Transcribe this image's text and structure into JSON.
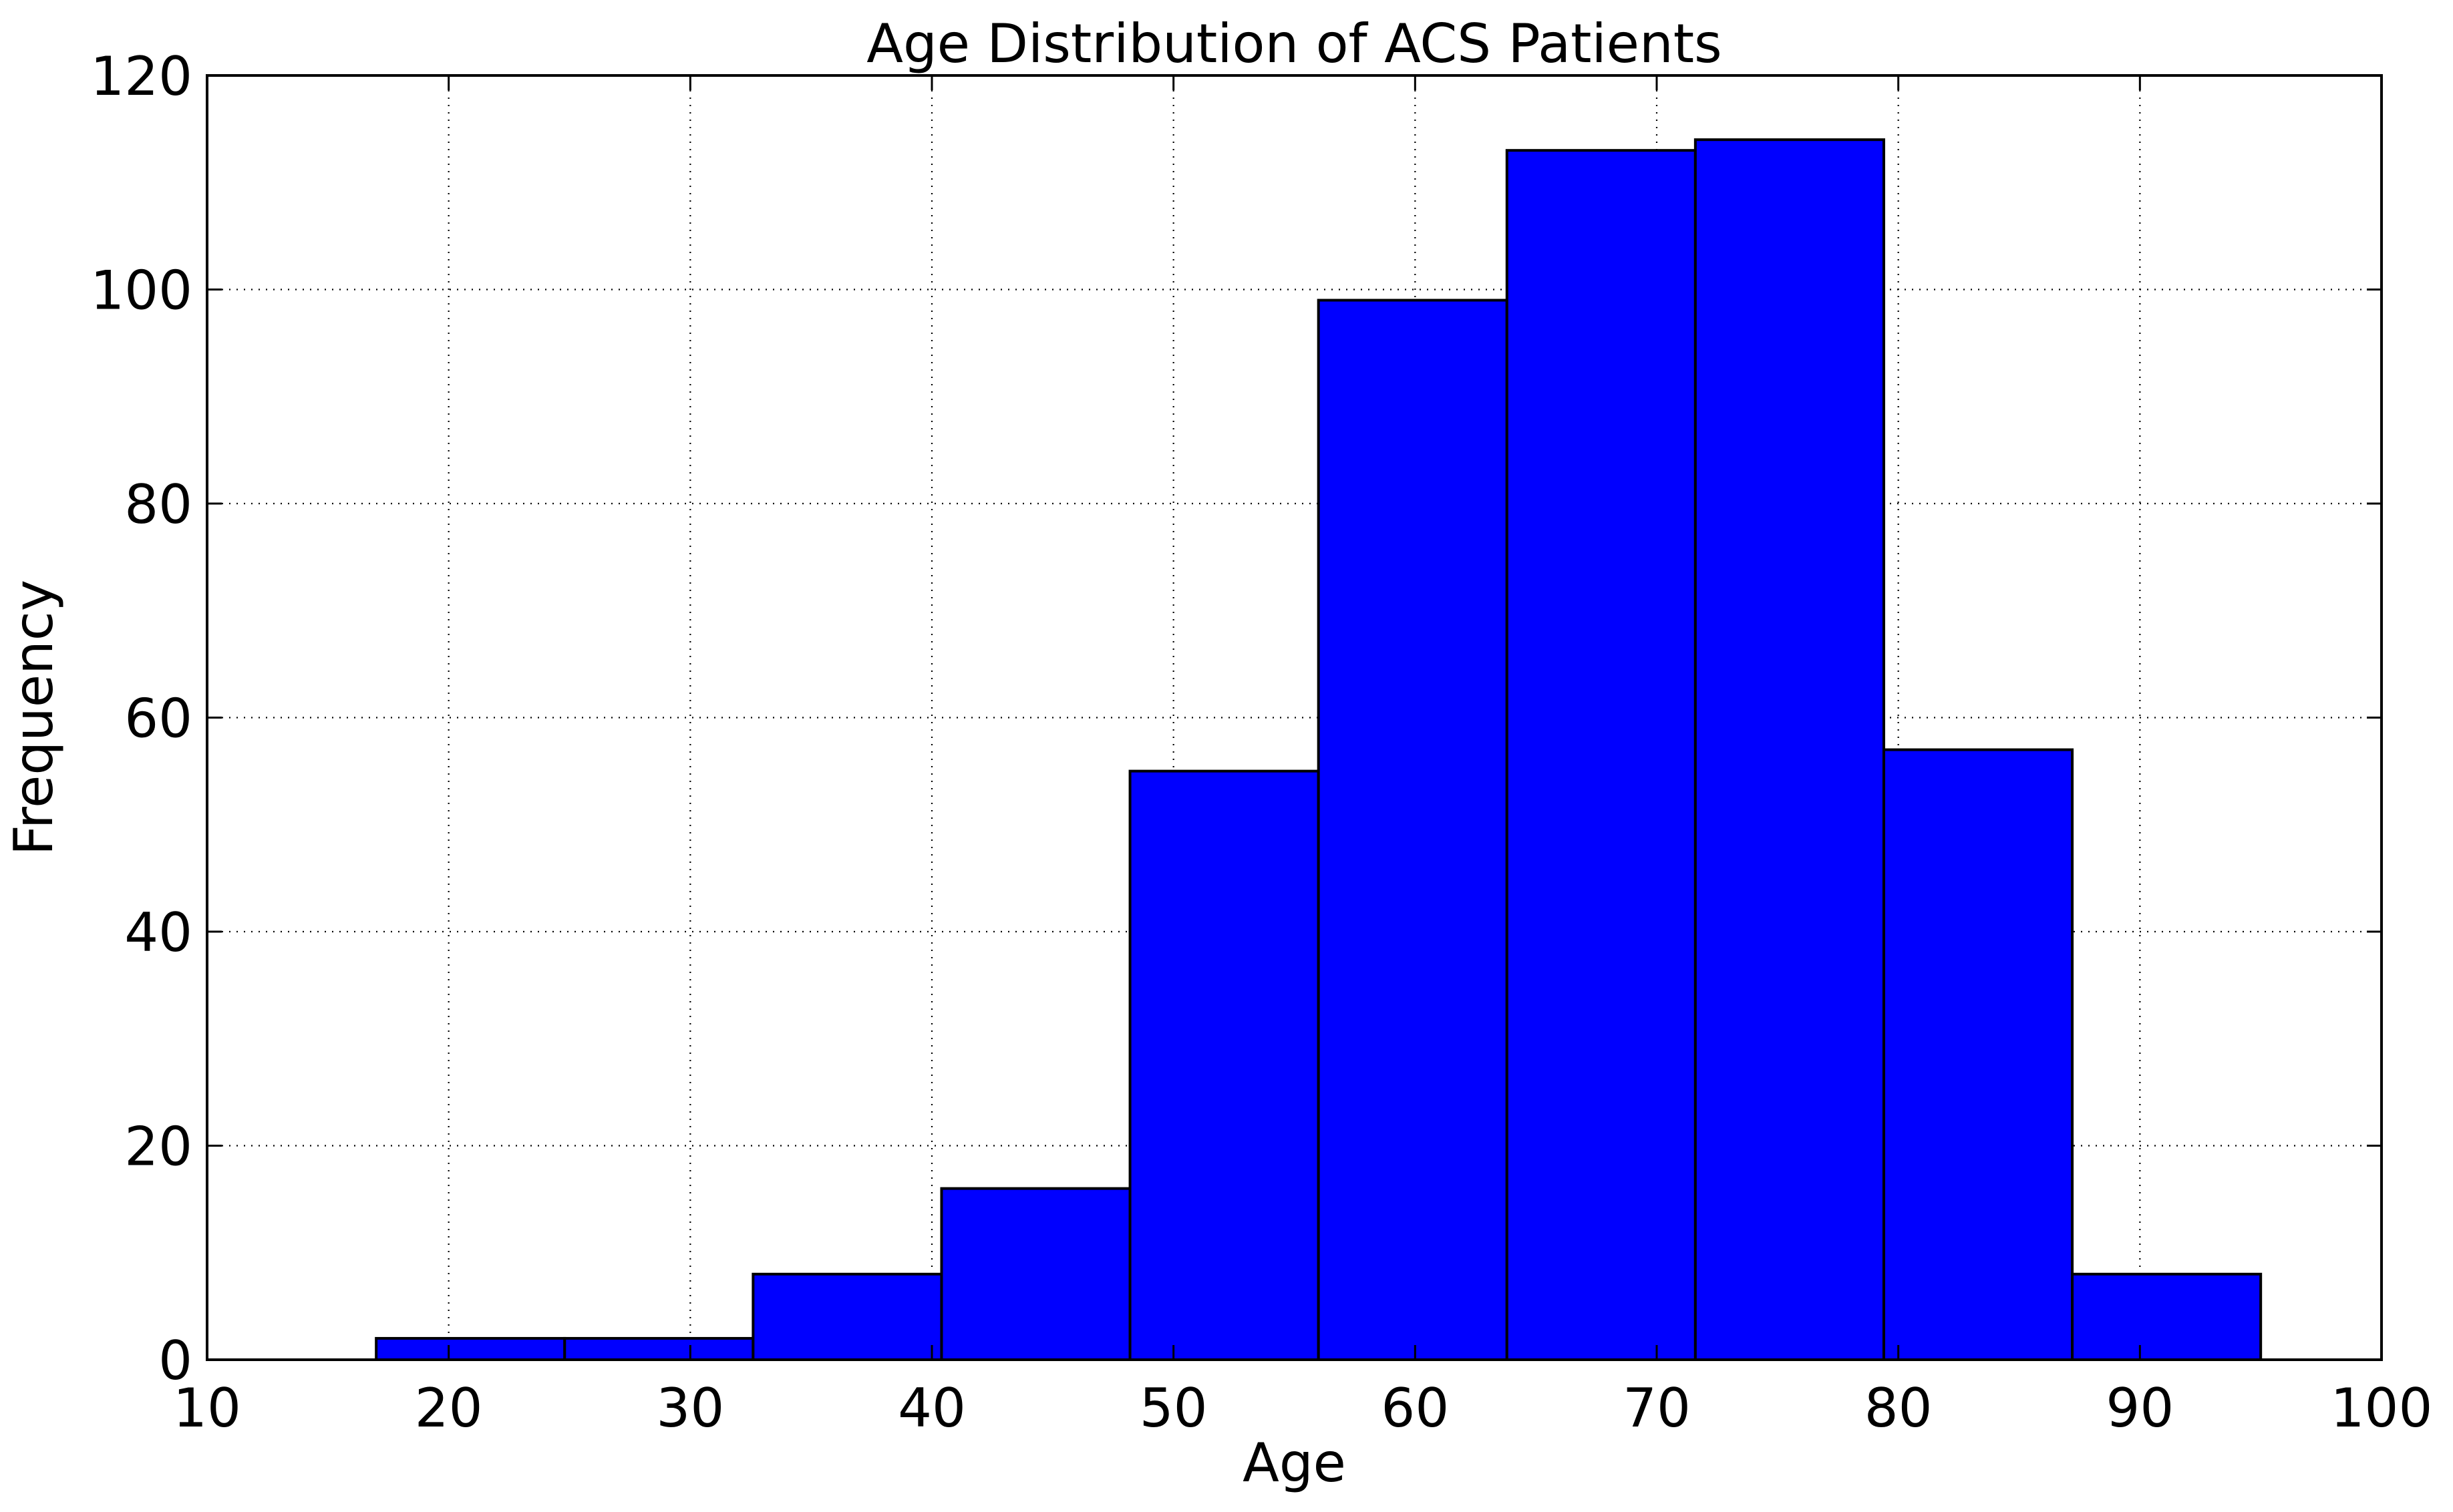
{
  "chart_data": {
    "type": "bar",
    "title": "Age Distribution of ACS Patients",
    "xlabel": "Age",
    "ylabel": "Frequency",
    "xlim": [
      10,
      100
    ],
    "ylim": [
      0,
      120
    ],
    "xticks": [
      "10",
      "20",
      "30",
      "40",
      "50",
      "60",
      "70",
      "80",
      "90",
      "100"
    ],
    "yticks": [
      "0",
      "20",
      "40",
      "60",
      "80",
      "100",
      "120"
    ],
    "bins": [
      {
        "x0": 17.0,
        "x1": 24.8,
        "count": 2
      },
      {
        "x0": 24.8,
        "x1": 32.6,
        "count": 2
      },
      {
        "x0": 32.6,
        "x1": 40.4,
        "count": 8
      },
      {
        "x0": 40.4,
        "x1": 48.2,
        "count": 16
      },
      {
        "x0": 48.2,
        "x1": 56.0,
        "count": 55
      },
      {
        "x0": 56.0,
        "x1": 63.8,
        "count": 99
      },
      {
        "x0": 63.8,
        "x1": 71.6,
        "count": 113
      },
      {
        "x0": 71.6,
        "x1": 79.4,
        "count": 114
      },
      {
        "x0": 79.4,
        "x1": 87.2,
        "count": 57
      },
      {
        "x0": 87.2,
        "x1": 95.0,
        "count": 8
      }
    ],
    "grid": true,
    "bar_color": "#0000ff",
    "edge_color": "#000000"
  }
}
